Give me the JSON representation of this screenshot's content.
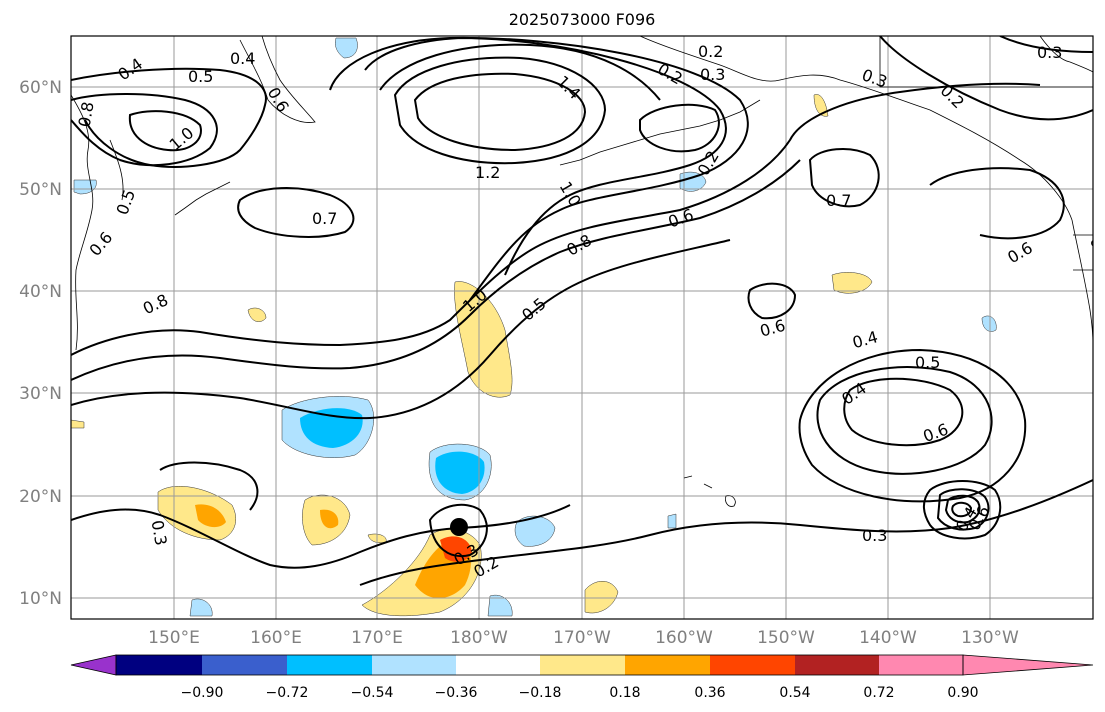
{
  "title": "2025073000 F096",
  "lat_labels": [
    "60°N",
    "50°N",
    "40°N",
    "30°N",
    "20°N",
    "10°N"
  ],
  "lon_labels": [
    "150°E",
    "160°E",
    "170°E",
    "180°W",
    "170°W",
    "160°W",
    "150°W",
    "140°W",
    "130°W"
  ],
  "colorbar": {
    "tick_labels": [
      "−0.90",
      "−0.72",
      "−0.54",
      "−0.36",
      "−0.18",
      "0.18",
      "0.36",
      "0.54",
      "0.72",
      "0.90"
    ],
    "colors": [
      "#9932cc",
      "#000080",
      "#3a5fcd",
      "#00bfff",
      "#b0e2ff",
      "#ffffff",
      "#ffe88a",
      "#ffa500",
      "#ff4500",
      "#b22222",
      "#ff88b0"
    ]
  },
  "contour_labels": [
    "0.4",
    "0.4",
    "0.5",
    "0.6",
    "0.8",
    "1.0",
    "1.2",
    "1.4",
    "0.2",
    "0.3",
    "0.3",
    "0.3",
    "0.2",
    "0.2",
    "0.5",
    "0.6",
    "0.7",
    "0.7",
    "0.8",
    "0.6",
    "0.6",
    "0.8",
    "1.0",
    "1.0",
    "0.5",
    "0.6",
    "0.4",
    "0.5",
    "0.4",
    "0.6",
    "0.3",
    "0.3",
    "0.3",
    "0.2",
    "0.2",
    "0.4",
    "0.6",
    "0.2"
  ],
  "marker": {
    "name": "storm-center"
  }
}
